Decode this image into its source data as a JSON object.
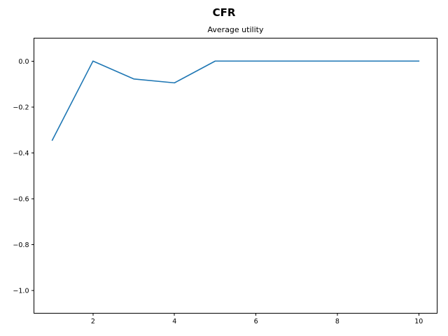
{
  "chart_data": {
    "type": "line",
    "suptitle": "CFR",
    "title": "Average utility",
    "xlabel": "",
    "ylabel": "",
    "x": [
      1,
      2,
      3,
      4,
      5,
      6,
      7,
      8,
      9,
      10
    ],
    "series": [
      {
        "values": [
          -0.345,
          0.0,
          -0.078,
          -0.095,
          0.0,
          0.0,
          0.0,
          0.0,
          0.0,
          0.0
        ],
        "color": "#1f77b4"
      }
    ],
    "xlim": [
      0.55,
      10.45
    ],
    "ylim": [
      -1.1,
      0.1
    ],
    "xticks": [
      2,
      4,
      6,
      8,
      10
    ],
    "xtick_labels": [
      "2",
      "4",
      "6",
      "8",
      "10"
    ],
    "yticks": [
      0.0,
      -0.2,
      -0.4,
      -0.6,
      -0.8,
      -1.0
    ],
    "ytick_labels": [
      "0.0",
      "−0.2",
      "−0.4",
      "−0.6",
      "−0.8",
      "−1.0"
    ],
    "grid": false,
    "legend": "none"
  }
}
